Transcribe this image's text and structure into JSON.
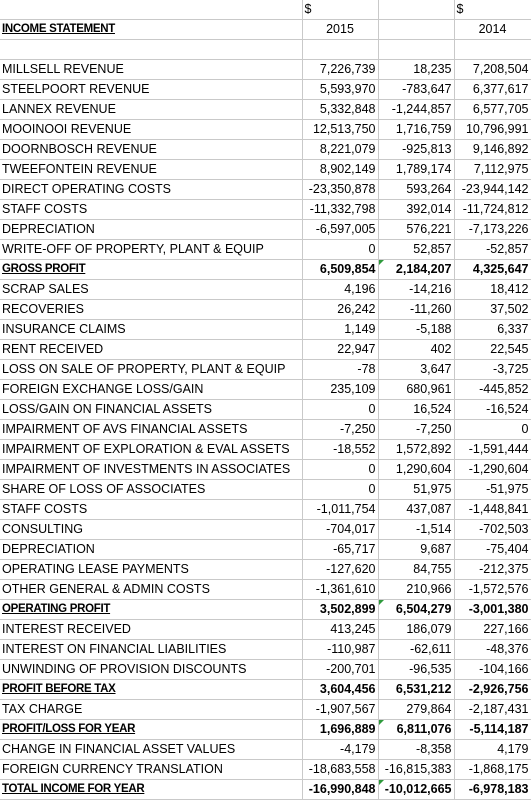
{
  "header": {
    "currency_2015": "$",
    "currency_2014": "$",
    "title": "INCOME STATEMENT",
    "year_2015": "2015",
    "year_2014": "2014"
  },
  "colors": {
    "positive_change": "#1f3a93",
    "negative_change": "#a31616",
    "comment_marker": "#2e9a3c"
  },
  "rows": [
    {
      "label": "MILLSELL REVENUE",
      "v2015": "7,226,739",
      "diff": "18,235",
      "v2014": "7,208,504",
      "bold": false
    },
    {
      "label": "STEELPOORT REVENUE",
      "v2015": "5,593,970",
      "diff": "-783,647",
      "v2014": "6,377,617",
      "bold": false
    },
    {
      "label": "LANNEX REVENUE",
      "v2015": "5,332,848",
      "diff": "-1,244,857",
      "v2014": "6,577,705",
      "bold": false
    },
    {
      "label": "MOOINOOI REVENUE",
      "v2015": "12,513,750",
      "diff": "1,716,759",
      "v2014": "10,796,991",
      "bold": false
    },
    {
      "label": "DOORNBOSCH REVENUE",
      "v2015": "8,221,079",
      "diff": "-925,813",
      "v2014": "9,146,892",
      "bold": false
    },
    {
      "label": "TWEEFONTEIN REVENUE",
      "v2015": "8,902,149",
      "diff": "1,789,174",
      "v2014": "7,112,975",
      "bold": false
    },
    {
      "label": "DIRECT OPERATING COSTS",
      "v2015": "-23,350,878",
      "diff": "593,264",
      "v2014": "-23,944,142",
      "bold": false
    },
    {
      "label": "STAFF COSTS",
      "v2015": "-11,332,798",
      "diff": "392,014",
      "v2014": "-11,724,812",
      "bold": false
    },
    {
      "label": "DEPRECIATION",
      "v2015": "-6,597,005",
      "diff": "576,221",
      "v2014": "-7,173,226",
      "bold": false
    },
    {
      "label": "WRITE-OFF OF PROPERTY, PLANT & EQUIP",
      "v2015": "0",
      "diff": "52,857",
      "v2014": "-52,857",
      "bold": false
    },
    {
      "label": "GROSS PROFIT",
      "v2015": "6,509,854",
      "diff": "2,184,207",
      "v2014": "4,325,647",
      "bold": true
    },
    {
      "label": "SCRAP SALES",
      "v2015": "4,196",
      "diff": "-14,216",
      "v2014": "18,412",
      "bold": false
    },
    {
      "label": "RECOVERIES",
      "v2015": "26,242",
      "diff": "-11,260",
      "v2014": "37,502",
      "bold": false
    },
    {
      "label": "INSURANCE CLAIMS",
      "v2015": "1,149",
      "diff": "-5,188",
      "v2014": "6,337",
      "bold": false
    },
    {
      "label": "RENT RECEIVED",
      "v2015": "22,947",
      "diff": "402",
      "v2014": "22,545",
      "bold": false
    },
    {
      "label": "LOSS ON SALE OF PROPERTY, PLANT & EQUIP",
      "v2015": "-78",
      "diff": "3,647",
      "v2014": "-3,725",
      "bold": false
    },
    {
      "label": "FOREIGN EXCHANGE LOSS/GAIN",
      "v2015": "235,109",
      "diff": "680,961",
      "v2014": "-445,852",
      "bold": false
    },
    {
      "label": "LOSS/GAIN ON FINANCIAL ASSETS",
      "v2015": "0",
      "diff": "16,524",
      "v2014": "-16,524",
      "bold": false
    },
    {
      "label": "IMPAIRMENT OF AVS FINANCIAL ASSETS",
      "v2015": "-7,250",
      "diff": "-7,250",
      "v2014": "0",
      "bold": false
    },
    {
      "label": "IMPAIRMENT OF EXPLORATION & EVAL ASSETS",
      "v2015": "-18,552",
      "diff": "1,572,892",
      "v2014": "-1,591,444",
      "bold": false
    },
    {
      "label": "IMPAIRMENT OF INVESTMENTS IN ASSOCIATES",
      "v2015": "0",
      "diff": "1,290,604",
      "v2014": "-1,290,604",
      "bold": false
    },
    {
      "label": "SHARE OF LOSS OF ASSOCIATES",
      "v2015": "0",
      "diff": "51,975",
      "v2014": "-51,975",
      "bold": false
    },
    {
      "label": "STAFF COSTS",
      "v2015": "-1,011,754",
      "diff": "437,087",
      "v2014": "-1,448,841",
      "bold": false
    },
    {
      "label": "CONSULTING",
      "v2015": "-704,017",
      "diff": "-1,514",
      "v2014": "-702,503",
      "bold": false
    },
    {
      "label": "DEPRECIATION",
      "v2015": "-65,717",
      "diff": "9,687",
      "v2014": "-75,404",
      "bold": false
    },
    {
      "label": "OPERATING LEASE PAYMENTS",
      "v2015": "-127,620",
      "diff": "84,755",
      "v2014": "-212,375",
      "bold": false
    },
    {
      "label": "OTHER GENERAL & ADMIN COSTS",
      "v2015": "-1,361,610",
      "diff": "210,966",
      "v2014": "-1,572,576",
      "bold": false
    },
    {
      "label": "OPERATING PROFIT",
      "v2015": "3,502,899",
      "diff": "6,504,279",
      "v2014": "-3,001,380",
      "bold": true
    },
    {
      "label": "INTEREST RECEIVED",
      "v2015": "413,245",
      "diff": "186,079",
      "v2014": "227,166",
      "bold": false
    },
    {
      "label": "INTEREST ON FINANCIAL LIABILITIES",
      "v2015": "-110,987",
      "diff": "-62,611",
      "v2014": "-48,376",
      "bold": false
    },
    {
      "label": "UNWINDING OF PROVISION DISCOUNTS",
      "v2015": "-200,701",
      "diff": "-96,535",
      "v2014": "-104,166",
      "bold": false
    },
    {
      "label": "PROFIT BEFORE TAX",
      "v2015": "3,604,456",
      "diff": "6,531,212",
      "v2014": "-2,926,756",
      "bold": true
    },
    {
      "label": "TAX CHARGE",
      "v2015": "-1,907,567",
      "diff": "279,864",
      "v2014": "-2,187,431",
      "bold": false
    },
    {
      "label": "PROFIT/LOSS FOR YEAR",
      "v2015": "1,696,889",
      "diff": "6,811,076",
      "v2014": "-5,114,187",
      "bold": true
    },
    {
      "label": "CHANGE IN FINANCIAL ASSET VALUES",
      "v2015": "-4,179",
      "diff": "-8,358",
      "v2014": "4,179",
      "bold": false
    },
    {
      "label": "FOREIGN CURRENCY TRANSLATION",
      "v2015": "-18,683,558",
      "diff": "-16,815,383",
      "v2014": "-1,868,175",
      "bold": false
    },
    {
      "label": "TOTAL INCOME FOR YEAR",
      "v2015": "-16,990,848",
      "diff": "-10,012,665",
      "v2014": "-6,978,183",
      "bold": true
    }
  ]
}
